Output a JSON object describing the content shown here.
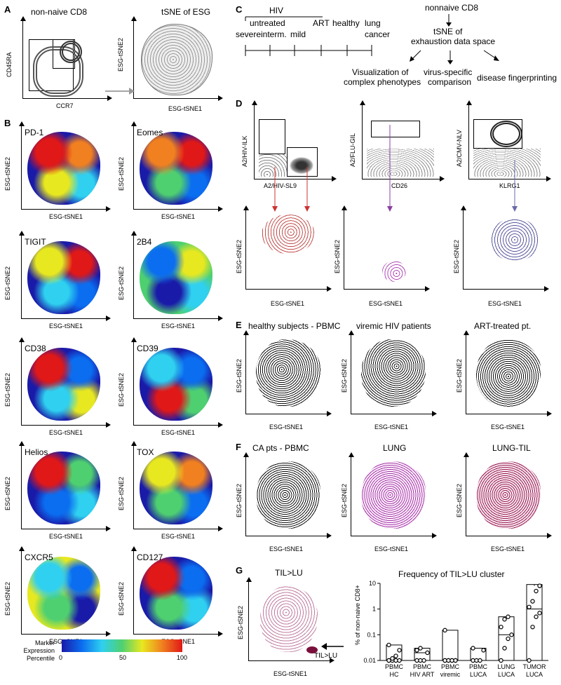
{
  "panels": {
    "A": "A",
    "B": "B",
    "C": "C",
    "D": "D",
    "E": "E",
    "F": "F",
    "G": "G"
  },
  "axes": {
    "tsne1": "ESG-tSNE1",
    "tsne2": "ESG-tSNE2",
    "ccr7": "CCR7",
    "cd45ra": "CD45RA"
  },
  "A": {
    "title1": "non-naive CD8",
    "title2": "tSNE of ESG"
  },
  "B": {
    "markers": [
      "PD-1",
      "Eomes",
      "TIGIT",
      "2B4",
      "CD38",
      "CD39",
      "Helios",
      "TOX",
      "CXCR5",
      "CD127"
    ],
    "legend_title": "Marker\nExpression\nPercentile",
    "legend_ticks": [
      "0",
      "50",
      "100"
    ],
    "colors": [
      "#1a1aa8",
      "#0b6df0",
      "#2fd0f0",
      "#4fd070",
      "#e8e820",
      "#f08020",
      "#e01818"
    ]
  },
  "C": {
    "hiv": "HIV",
    "untreated": "untreated",
    "severe": "severe",
    "interm": "interm.",
    "mild": "mild",
    "art": "ART",
    "healthy": "healthy",
    "lung": "lung",
    "cancer": "cancer",
    "nonnaive": "nonnaive CD8",
    "tsne_of": "tSNE of",
    "exhaustion": "exhaustion data space",
    "vis1": "Visualization of",
    "vis2": "complex phenotypes",
    "virus1": "virus-specific",
    "virus2": "comparison",
    "disease": "disease fingerprinting"
  },
  "D": {
    "y1": "A2/HIV-ILK",
    "x1": "A2/HIV-SL9",
    "y2": "A2/FLU-GIL",
    "x2": "CD26",
    "y3": "A2/CMV-NLV",
    "x3": "KLRG1"
  },
  "E": {
    "t1": "healthy subjects - PBMC",
    "t2": "viremic HIV patients",
    "t3": "ART-treated pt."
  },
  "F": {
    "t1": "CA pts - PBMC",
    "t2": "LUNG",
    "t3": "LUNG-TIL"
  },
  "G": {
    "t1": "TIL>LU",
    "arrow_label": "TIL>LU",
    "chart_title": "Frequency of TIL>LU cluster"
  },
  "chart_data": {
    "type": "scatter",
    "title": "Frequency of TIL>LU cluster",
    "ylabel": "% of non-naive CD8+",
    "yscale": "log",
    "ylim": [
      0.01,
      10
    ],
    "yticks": [
      "0.01",
      "0.1",
      "1",
      "10"
    ],
    "categories": [
      "PBMC HC",
      "PBMC HIV ART",
      "PBMC viremic",
      "PBMC LUCA",
      "LUNG LUCA",
      "TUMOR LUCA"
    ],
    "cat_line1": [
      "PBMC",
      "PBMC",
      "PBMC",
      "PBMC",
      "LUNG",
      "TUMOR"
    ],
    "cat_line2": [
      "HC",
      "HIV ART",
      "viremic",
      "LUCA",
      "LUCA",
      "LUCA"
    ],
    "points": [
      [
        0.01,
        0.01,
        0.01,
        0.01,
        0.01,
        0.012,
        0.015,
        0.025,
        0.04
      ],
      [
        0.01,
        0.01,
        0.01,
        0.02,
        0.025,
        0.03
      ],
      [
        0.01,
        0.01,
        0.01,
        0.01,
        0.01,
        0.01,
        0.01,
        0.01,
        0.15
      ],
      [
        0.01,
        0.01,
        0.01,
        0.025,
        0.03
      ],
      [
        0.01,
        0.03,
        0.07,
        0.1,
        0.2,
        0.4,
        0.5
      ],
      [
        0.01,
        0.2,
        0.5,
        0.7,
        1.2,
        2,
        5,
        8
      ]
    ],
    "boxes": [
      [
        0.01,
        0.01,
        0.04
      ],
      [
        0.01,
        0.02,
        0.03
      ],
      [
        0.01,
        0.01,
        0.15
      ],
      [
        0.01,
        0.01,
        0.03
      ],
      [
        0.01,
        0.1,
        0.5
      ],
      [
        0.01,
        1,
        9
      ]
    ]
  }
}
